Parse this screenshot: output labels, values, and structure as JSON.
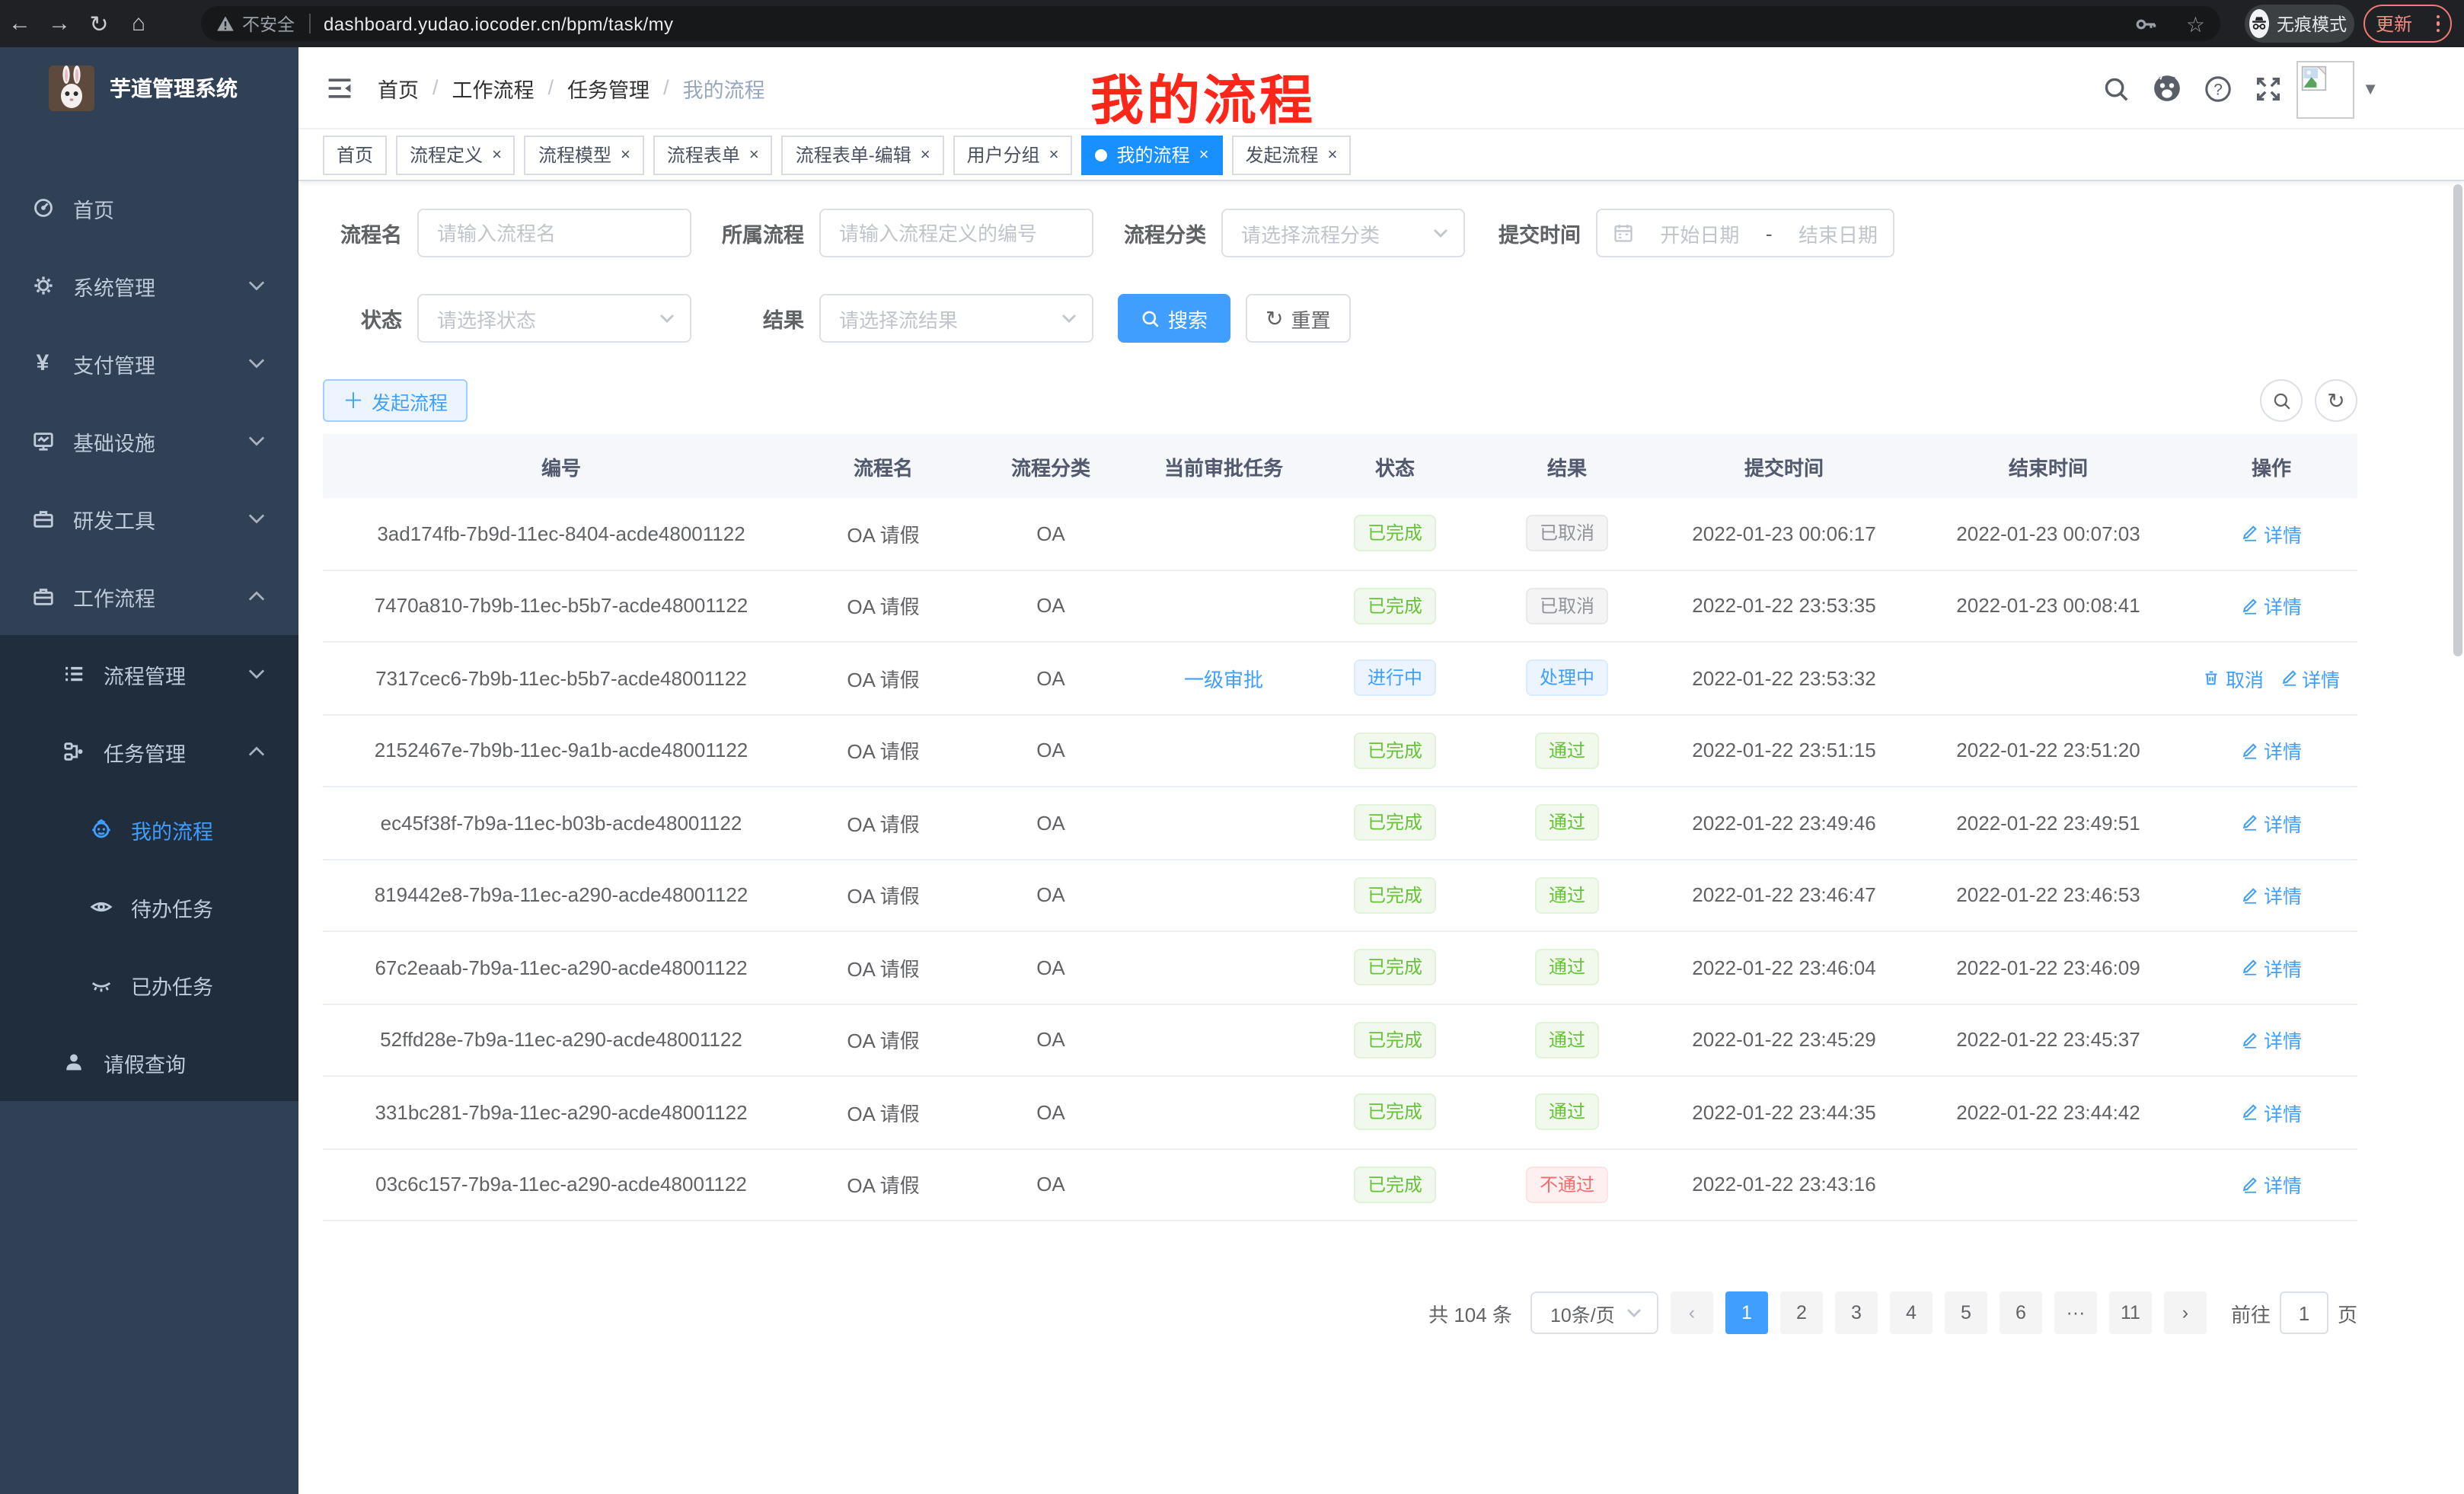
{
  "colors": {
    "primary": "#409eff",
    "tab_active": "#1890ff",
    "sidebar_bg": "#304156",
    "submenu_bg": "#1f2d3d",
    "overlay_red": "#fd2618"
  },
  "browser": {
    "security_label": "不安全",
    "url": "dashboard.yudao.iocoder.cn/bpm/task/my",
    "incognito_label": "无痕模式",
    "update_label": "更新"
  },
  "sidebar": {
    "title": "芋道管理系统",
    "items": [
      {
        "label": "首页",
        "icon": "gauge-icon",
        "level": 1,
        "dark": false,
        "chevron": "",
        "active": false
      },
      {
        "label": "系统管理",
        "icon": "gear-icon",
        "level": 1,
        "dark": false,
        "chevron": "down",
        "active": false
      },
      {
        "label": "支付管理",
        "icon": "yen-icon",
        "level": 1,
        "dark": false,
        "chevron": "down",
        "active": false
      },
      {
        "label": "基础设施",
        "icon": "monitor-icon",
        "level": 1,
        "dark": false,
        "chevron": "down",
        "active": false
      },
      {
        "label": "研发工具",
        "icon": "toolbox-icon",
        "level": 1,
        "dark": false,
        "chevron": "down",
        "active": false
      },
      {
        "label": "工作流程",
        "icon": "briefcase-icon",
        "level": 1,
        "dark": false,
        "chevron": "up",
        "active": false
      },
      {
        "label": "流程管理",
        "icon": "list-icon",
        "level": 2,
        "dark": true,
        "chevron": "down",
        "active": false
      },
      {
        "label": "任务管理",
        "icon": "flow-icon",
        "level": 2,
        "dark": true,
        "chevron": "up",
        "active": false
      },
      {
        "label": "我的流程",
        "icon": "robot-icon",
        "level": 3,
        "dark": true,
        "chevron": "",
        "active": true
      },
      {
        "label": "待办任务",
        "icon": "eye-icon",
        "level": 3,
        "dark": true,
        "chevron": "",
        "active": false
      },
      {
        "label": "已办任务",
        "icon": "eye-closed-icon",
        "level": 3,
        "dark": true,
        "chevron": "",
        "active": false
      },
      {
        "label": "请假查询",
        "icon": "user-icon",
        "level": 2,
        "dark": true,
        "chevron": "",
        "active": false
      }
    ]
  },
  "navbar": {
    "breadcrumb": [
      "首页",
      "工作流程",
      "任务管理",
      "我的流程"
    ],
    "overlay_title": "我的流程"
  },
  "tabs": [
    {
      "label": "首页",
      "closable": false,
      "active": false
    },
    {
      "label": "流程定义",
      "closable": true,
      "active": false
    },
    {
      "label": "流程模型",
      "closable": true,
      "active": false
    },
    {
      "label": "流程表单",
      "closable": true,
      "active": false
    },
    {
      "label": "流程表单-编辑",
      "closable": true,
      "active": false
    },
    {
      "label": "用户分组",
      "closable": true,
      "active": false
    },
    {
      "label": "我的流程",
      "closable": true,
      "active": true
    },
    {
      "label": "发起流程",
      "closable": true,
      "active": false
    }
  ],
  "filters": {
    "name": {
      "label": "流程名",
      "placeholder": "请输入流程名"
    },
    "definition": {
      "label": "所属流程",
      "placeholder": "请输入流程定义的编号"
    },
    "category": {
      "label": "流程分类",
      "placeholder": "请选择流程分类"
    },
    "submit_time": {
      "label": "提交时间",
      "start_placeholder": "开始日期",
      "separator": "-",
      "end_placeholder": "结束日期"
    },
    "status": {
      "label": "状态",
      "placeholder": "请选择状态"
    },
    "result": {
      "label": "结果",
      "placeholder": "请选择流结果"
    },
    "search_label": "搜索",
    "reset_label": "重置"
  },
  "toolbar": {
    "create_label": "发起流程"
  },
  "table": {
    "columns": [
      "编号",
      "流程名",
      "流程分类",
      "当前审批任务",
      "状态",
      "结果",
      "提交时间",
      "结束时间",
      "操作"
    ],
    "rows": [
      {
        "id": "3ad174fb-7b9d-11ec-8404-acde48001122",
        "name": "OA 请假",
        "category": "OA",
        "current_task": "",
        "status": {
          "label": "已完成",
          "type": "success"
        },
        "result": {
          "label": "已取消",
          "type": "info"
        },
        "submit_time": "2022-01-23 00:06:17",
        "end_time": "2022-01-23 00:07:03",
        "actions": [
          {
            "label": "详情",
            "icon": "edit-icon"
          }
        ]
      },
      {
        "id": "7470a810-7b9b-11ec-b5b7-acde48001122",
        "name": "OA 请假",
        "category": "OA",
        "current_task": "",
        "status": {
          "label": "已完成",
          "type": "success"
        },
        "result": {
          "label": "已取消",
          "type": "info"
        },
        "submit_time": "2022-01-22 23:53:35",
        "end_time": "2022-01-23 00:08:41",
        "actions": [
          {
            "label": "详情",
            "icon": "edit-icon"
          }
        ]
      },
      {
        "id": "7317cec6-7b9b-11ec-b5b7-acde48001122",
        "name": "OA 请假",
        "category": "OA",
        "current_task": "一级审批",
        "status": {
          "label": "进行中",
          "type": "primary"
        },
        "result": {
          "label": "处理中",
          "type": "primary"
        },
        "submit_time": "2022-01-22 23:53:32",
        "end_time": "",
        "actions": [
          {
            "label": "取消",
            "icon": "delete-icon"
          },
          {
            "label": "详情",
            "icon": "edit-icon"
          }
        ]
      },
      {
        "id": "2152467e-7b9b-11ec-9a1b-acde48001122",
        "name": "OA 请假",
        "category": "OA",
        "current_task": "",
        "status": {
          "label": "已完成",
          "type": "success"
        },
        "result": {
          "label": "通过",
          "type": "success"
        },
        "submit_time": "2022-01-22 23:51:15",
        "end_time": "2022-01-22 23:51:20",
        "actions": [
          {
            "label": "详情",
            "icon": "edit-icon"
          }
        ]
      },
      {
        "id": "ec45f38f-7b9a-11ec-b03b-acde48001122",
        "name": "OA 请假",
        "category": "OA",
        "current_task": "",
        "status": {
          "label": "已完成",
          "type": "success"
        },
        "result": {
          "label": "通过",
          "type": "success"
        },
        "submit_time": "2022-01-22 23:49:46",
        "end_time": "2022-01-22 23:49:51",
        "actions": [
          {
            "label": "详情",
            "icon": "edit-icon"
          }
        ]
      },
      {
        "id": "819442e8-7b9a-11ec-a290-acde48001122",
        "name": "OA 请假",
        "category": "OA",
        "current_task": "",
        "status": {
          "label": "已完成",
          "type": "success"
        },
        "result": {
          "label": "通过",
          "type": "success"
        },
        "submit_time": "2022-01-22 23:46:47",
        "end_time": "2022-01-22 23:46:53",
        "actions": [
          {
            "label": "详情",
            "icon": "edit-icon"
          }
        ]
      },
      {
        "id": "67c2eaab-7b9a-11ec-a290-acde48001122",
        "name": "OA 请假",
        "category": "OA",
        "current_task": "",
        "status": {
          "label": "已完成",
          "type": "success"
        },
        "result": {
          "label": "通过",
          "type": "success"
        },
        "submit_time": "2022-01-22 23:46:04",
        "end_time": "2022-01-22 23:46:09",
        "actions": [
          {
            "label": "详情",
            "icon": "edit-icon"
          }
        ]
      },
      {
        "id": "52ffd28e-7b9a-11ec-a290-acde48001122",
        "name": "OA 请假",
        "category": "OA",
        "current_task": "",
        "status": {
          "label": "已完成",
          "type": "success"
        },
        "result": {
          "label": "通过",
          "type": "success"
        },
        "submit_time": "2022-01-22 23:45:29",
        "end_time": "2022-01-22 23:45:37",
        "actions": [
          {
            "label": "详情",
            "icon": "edit-icon"
          }
        ]
      },
      {
        "id": "331bc281-7b9a-11ec-a290-acde48001122",
        "name": "OA 请假",
        "category": "OA",
        "current_task": "",
        "status": {
          "label": "已完成",
          "type": "success"
        },
        "result": {
          "label": "通过",
          "type": "success"
        },
        "submit_time": "2022-01-22 23:44:35",
        "end_time": "2022-01-22 23:44:42",
        "actions": [
          {
            "label": "详情",
            "icon": "edit-icon"
          }
        ]
      },
      {
        "id": "03c6c157-7b9a-11ec-a290-acde48001122",
        "name": "OA 请假",
        "category": "OA",
        "current_task": "",
        "status": {
          "label": "已完成",
          "type": "success"
        },
        "result": {
          "label": "不通过",
          "type": "danger"
        },
        "submit_time": "2022-01-22 23:43:16",
        "end_time": "",
        "actions": [
          {
            "label": "详情",
            "icon": "edit-icon"
          }
        ]
      }
    ]
  },
  "pagination": {
    "total": "共 104 条",
    "page_size": "10条/页",
    "pages": [
      "1",
      "2",
      "3",
      "4",
      "5",
      "6",
      "...",
      "11"
    ],
    "active_page": "1",
    "goto_label": "前往",
    "goto_value": "1",
    "goto_suffix": "页"
  }
}
